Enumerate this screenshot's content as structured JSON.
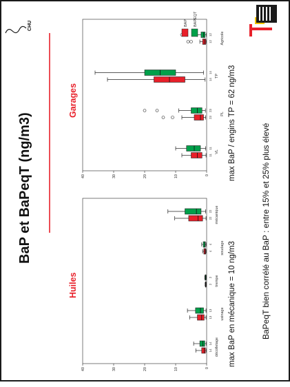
{
  "slide": {
    "title": "BaP et BaPeqT (ng/m3)",
    "logo_left_text": "CHU",
    "note_1": "max BaP en mécanique = 10 ng/m3",
    "note_2": "max BaP / engins TP = 62 ng/m3",
    "note_3": "BaPeqT bien corrélé au BaP : entre 15% et 25% plus élevé"
  },
  "colors": {
    "bap": "#e8202a",
    "bapeqt": "#00a04a",
    "title_red": "#e8202a",
    "frame": "#1a1a1a"
  },
  "legend": [
    "BAP",
    "BAPEQT"
  ],
  "chart_data": [
    {
      "type": "box",
      "title": "Huiles",
      "ylim": [
        0,
        40
      ],
      "yticks": [
        0,
        10,
        20,
        30,
        40
      ],
      "categories": [
        "décolletage",
        "usinage",
        "trempe",
        "soudage",
        "mécanique"
      ],
      "counts": [
        [
          "14",
          "14"
        ],
        [
          "13",
          "13"
        ],
        [
          "2",
          "2"
        ],
        [
          "4",
          "4"
        ],
        [
          "22",
          "22"
        ]
      ],
      "series": [
        {
          "name": "BAP",
          "boxes": [
            {
              "min": 0.1,
              "q1": 0.4,
              "median": 0.8,
              "q3": 1.6,
              "max": 3.5
            },
            {
              "min": 0.2,
              "q1": 0.8,
              "median": 1.6,
              "q3": 3.0,
              "max": 5.5
            },
            {
              "min": 0.1,
              "q1": 0.2,
              "median": 0.3,
              "q3": 0.4,
              "max": 0.5
            },
            {
              "min": 0.1,
              "q1": 0.3,
              "median": 0.5,
              "q3": 0.9,
              "max": 1.3
            },
            {
              "min": 0.2,
              "q1": 1.3,
              "median": 2.8,
              "q3": 5.8,
              "max": 10.3
            }
          ]
        },
        {
          "name": "BAPEQT",
          "boxes": [
            {
              "min": 0.1,
              "q1": 0.6,
              "median": 1.2,
              "q3": 2.2,
              "max": 4.2
            },
            {
              "min": 0.2,
              "q1": 1.0,
              "median": 2.0,
              "q3": 3.6,
              "max": 6.2
            },
            {
              "min": 0.1,
              "q1": 0.2,
              "median": 0.4,
              "q3": 0.5,
              "max": 0.6
            },
            {
              "min": 0.1,
              "q1": 0.4,
              "median": 0.6,
              "q3": 1.1,
              "max": 1.6
            },
            {
              "min": 0.3,
              "q1": 1.8,
              "median": 3.3,
              "q3": 7.0,
              "max": 12.5
            }
          ]
        }
      ]
    },
    {
      "type": "box",
      "title": "Garages",
      "ylim": [
        0,
        40
      ],
      "yticks": [
        0,
        10,
        20,
        30,
        40
      ],
      "categories": [
        "VL",
        "PL",
        "TP",
        "Agricole"
      ],
      "counts": [
        [
          "11",
          "11"
        ],
        [
          "23",
          "23"
        ],
        [
          "14",
          "14"
        ],
        [
          "12",
          "12"
        ]
      ],
      "series": [
        {
          "name": "BAP",
          "boxes": [
            {
              "min": 0.2,
              "q1": 1.5,
              "median": 3.0,
              "q3": 5.0,
              "max": 8.0
            },
            {
              "min": 0.3,
              "q1": 1.0,
              "median": 2.0,
              "q3": 4.0,
              "max": 8.0
            },
            {
              "min": 0.5,
              "q1": 7.0,
              "median": 12.0,
              "q3": 17.0,
              "max": 32.0
            },
            {
              "min": 0.1,
              "q1": 0.3,
              "median": 0.7,
              "q3": 1.3,
              "max": 2.2
            }
          ],
          "outliers": [
            [],
            [
              11,
              14
            ],
            [],
            [
              5,
              6
            ]
          ]
        },
        {
          "name": "BAPEQT",
          "boxes": [
            {
              "min": 0.3,
              "q1": 2.0,
              "median": 4.0,
              "q3": 6.5,
              "max": 10.0
            },
            {
              "min": 0.4,
              "q1": 1.5,
              "median": 3.0,
              "q3": 5.0,
              "max": 9.0
            },
            {
              "min": 1.0,
              "q1": 10.0,
              "median": 15.0,
              "q3": 20.0,
              "max": 36.0
            },
            {
              "min": 0.1,
              "q1": 0.5,
              "median": 1.0,
              "q3": 1.8,
              "max": 3.0
            }
          ],
          "outliers": [
            [],
            [
              16,
              20
            ],
            [],
            [
              7,
              8
            ]
          ]
        }
      ]
    }
  ]
}
